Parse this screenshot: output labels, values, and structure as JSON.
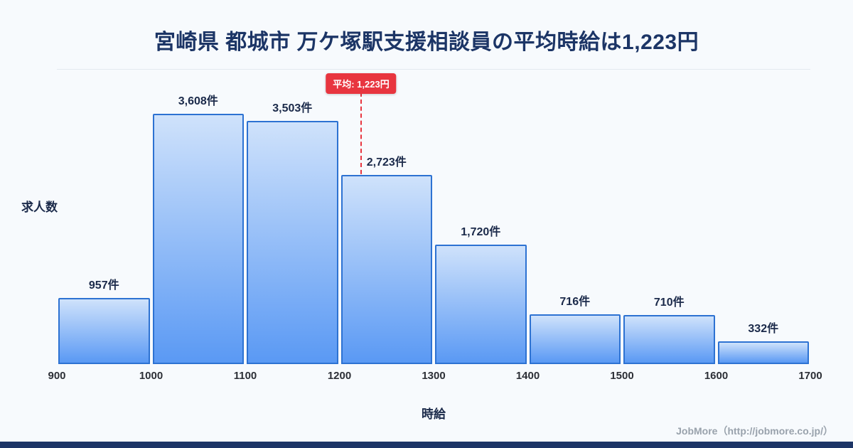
{
  "page": {
    "title": "宮崎県 都城市 万ケ塚駅支援相談員の平均時給は1,223円",
    "footer": "JobMore（http://jobmore.co.jp/）"
  },
  "chart_data": {
    "type": "bar",
    "title": "宮崎県 都城市 万ケ塚駅支援相談員の平均時給は1,223円",
    "xlabel": "時給",
    "ylabel": "求人数",
    "x_range": [
      900,
      1700
    ],
    "bin_edges": [
      900,
      1000,
      1100,
      1200,
      1300,
      1400,
      1500,
      1600,
      1700
    ],
    "x_tick_labels": [
      "900",
      "1000",
      "1100",
      "1200",
      "1300",
      "1400",
      "1500",
      "1600",
      "1700"
    ],
    "categories": [
      "900-1000",
      "1000-1100",
      "1100-1200",
      "1200-1300",
      "1300-1400",
      "1400-1500",
      "1500-1600",
      "1600-1700"
    ],
    "values": [
      957,
      3608,
      3503,
      2723,
      1720,
      716,
      710,
      332
    ],
    "value_labels": [
      "957件",
      "3,608件",
      "3,503件",
      "2,723件",
      "1,720件",
      "716件",
      "710件",
      "332件"
    ],
    "ylim": [
      0,
      3900
    ],
    "grid": false,
    "legend": "none",
    "average": {
      "value": 1223,
      "label": "平均: 1,223円"
    }
  },
  "colors": {
    "background": "#f7fafd",
    "title_navy": "#1c3566",
    "bar_fill_top": "#cfe2fb",
    "bar_fill_bottom": "#5a99f4",
    "bar_border": "#2d72d2",
    "average_red": "#e8353f",
    "label_dark": "#1b2a4a",
    "footer_gray": "#99a2ac",
    "bottom_strip": "#1d3566"
  }
}
